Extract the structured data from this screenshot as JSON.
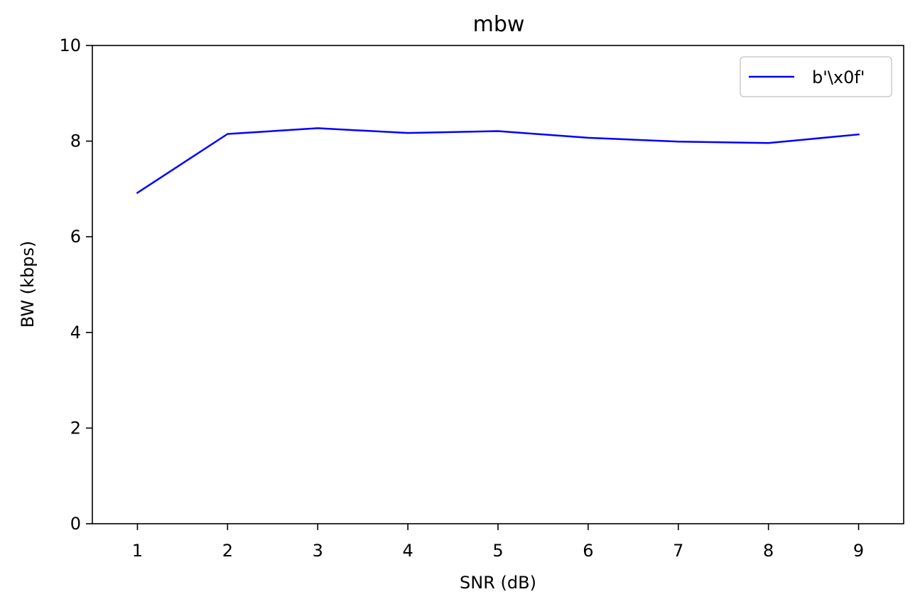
{
  "chart_data": {
    "type": "line",
    "title": "mbw",
    "xlabel": "SNR (dB)",
    "ylabel": "BW (kbps)",
    "xlim": [
      0.5,
      9.5
    ],
    "ylim": [
      0,
      10
    ],
    "xticks": [
      1,
      2,
      3,
      4,
      5,
      6,
      7,
      8,
      9
    ],
    "yticks": [
      0,
      2,
      4,
      6,
      8,
      10
    ],
    "grid": false,
    "legend_position": "top-right",
    "series": [
      {
        "name": "b'\\x0f'",
        "color": "#0000ff",
        "x": [
          1,
          2,
          3,
          4,
          5,
          6,
          7,
          8,
          9
        ],
        "y": [
          6.92,
          8.15,
          8.27,
          8.17,
          8.21,
          8.07,
          7.99,
          7.96,
          8.14
        ]
      }
    ]
  }
}
